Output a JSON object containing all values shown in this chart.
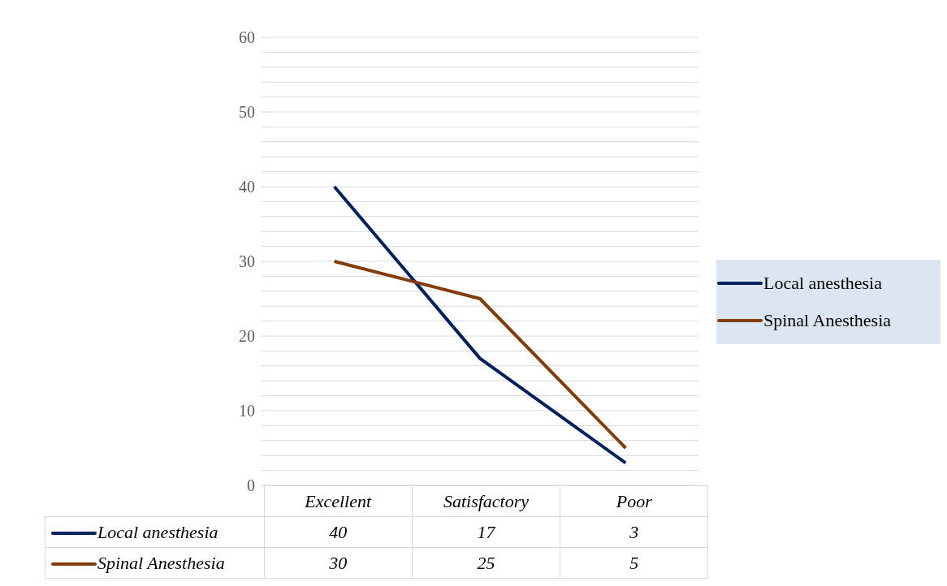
{
  "chart_data": {
    "type": "line",
    "categories": [
      "Excellent",
      "Satisfactory",
      "Poor"
    ],
    "series": [
      {
        "name": "Local anesthesia",
        "color": "#002060",
        "values": [
          40,
          17,
          3
        ]
      },
      {
        "name": "Spinal Anesthesia",
        "color": "#843c0c",
        "values": [
          30,
          25,
          5
        ]
      }
    ],
    "ylim": [
      0,
      60
    ],
    "yticks": [
      0,
      {
        "value": 2,
        "label": null
      },
      {
        "value": 4,
        "label": null
      },
      {
        "value": 6,
        "label": null
      },
      {
        "value": 8,
        "label": null
      },
      10,
      {
        "value": 12,
        "label": null
      },
      {
        "value": 14,
        "label": null
      },
      {
        "value": 16,
        "label": null
      },
      {
        "value": 18,
        "label": null
      },
      20,
      {
        "value": 22,
        "label": null
      },
      {
        "value": 24,
        "label": null
      },
      {
        "value": 26,
        "label": null
      },
      {
        "value": 28,
        "label": null
      },
      30,
      {
        "value": 32,
        "label": null
      },
      {
        "value": 34,
        "label": null
      },
      {
        "value": 36,
        "label": null
      },
      {
        "value": 38,
        "label": null
      },
      40,
      {
        "value": 42,
        "label": null
      },
      {
        "value": 44,
        "label": null
      },
      {
        "value": 46,
        "label": null
      },
      {
        "value": 48,
        "label": null
      },
      50,
      {
        "value": 52,
        "label": null
      },
      {
        "value": 54,
        "label": null
      },
      {
        "value": 56,
        "label": null
      },
      {
        "value": 58,
        "label": null
      },
      60
    ],
    "grid": "y",
    "legend": "right",
    "marker": "none",
    "line_style": "solid",
    "data_labels": true
  }
}
